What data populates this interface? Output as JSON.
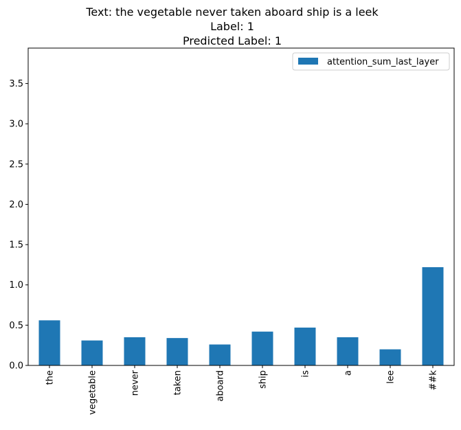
{
  "chart_data": {
    "type": "bar",
    "title_lines": [
      "Text: the vegetable never taken aboard ship is a leek",
      "Label: 1",
      "Predicted Label: 1"
    ],
    "categories": [
      "the",
      "vegetable",
      "never",
      "taken",
      "aboard",
      "ship",
      "is",
      "a",
      "lee",
      "##k"
    ],
    "series": [
      {
        "name": "attention_sum_last_layer",
        "values": [
          0.56,
          0.31,
          0.35,
          0.34,
          0.26,
          0.42,
          0.47,
          0.35,
          0.2,
          1.22
        ],
        "color": "#1f77b4"
      }
    ],
    "xlabel": "",
    "ylabel": "",
    "ylim": [
      0,
      3.94
    ],
    "yticks": [
      0.0,
      0.5,
      1.0,
      1.5,
      2.0,
      2.5,
      3.0,
      3.5
    ],
    "ytick_labels": [
      "0.0",
      "0.5",
      "1.0",
      "1.5",
      "2.0",
      "2.5",
      "3.0",
      "3.5"
    ],
    "grid": false,
    "legend_position": "top-right"
  }
}
